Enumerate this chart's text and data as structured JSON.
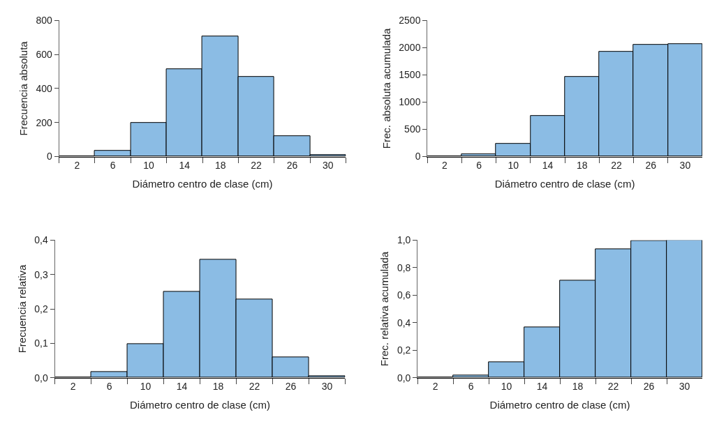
{
  "chart_data": [
    {
      "type": "histogram",
      "xlabel": "Diámetro centro de clase (cm)",
      "ylabel": "Frecuencia absoluta",
      "bins": [
        0,
        4,
        8,
        12,
        16,
        20,
        24,
        28,
        32
      ],
      "values": [
        0,
        35,
        200,
        515,
        705,
        470,
        120,
        8
      ],
      "color": "#8bbce4",
      "xlim": [
        0,
        32
      ],
      "xticks": [
        {
          "value": 0,
          "label": null
        },
        {
          "value": 4,
          "label": null
        },
        {
          "value": 8,
          "label": null
        },
        {
          "value": 12,
          "label": null
        },
        {
          "value": 16,
          "label": null
        },
        {
          "value": 20,
          "label": null
        },
        {
          "value": 24,
          "label": null
        },
        {
          "value": 28,
          "label": null
        },
        {
          "value": 32,
          "label": null
        },
        2,
        6,
        10,
        14,
        18,
        22,
        26,
        30
      ],
      "ylim": [
        0,
        800
      ],
      "yticks": [
        0,
        200,
        400,
        600,
        800
      ]
    },
    {
      "type": "histogram",
      "xlabel": "Diámetro centro de clase (cm)",
      "ylabel": "Frec. absoluta acumulada",
      "bins": [
        0,
        4,
        8,
        12,
        16,
        20,
        24,
        28,
        32
      ],
      "values": [
        0,
        40,
        240,
        750,
        1460,
        1930,
        2050,
        2060
      ],
      "color": "#8bbce4",
      "xlim": [
        0,
        32
      ],
      "xticks": [
        {
          "value": 0,
          "label": null
        },
        {
          "value": 4,
          "label": null
        },
        {
          "value": 8,
          "label": null
        },
        {
          "value": 12,
          "label": null
        },
        {
          "value": 16,
          "label": null
        },
        {
          "value": 20,
          "label": null
        },
        {
          "value": 24,
          "label": null
        },
        {
          "value": 28,
          "label": null
        },
        2,
        6,
        10,
        14,
        18,
        22,
        26,
        30
      ],
      "ylim": [
        0,
        2500
      ],
      "yticks": [
        0,
        500,
        1000,
        1500,
        2000,
        2500
      ]
    },
    {
      "type": "histogram",
      "xlabel": "Diámetro centro de clase (cm)",
      "ylabel": "Frecuencia relativa",
      "bins": [
        0,
        4,
        8,
        12,
        16,
        20,
        24,
        28,
        32
      ],
      "values": [
        0,
        0.017,
        0.098,
        0.25,
        0.343,
        0.228,
        0.059,
        0.004
      ],
      "color": "#8bbce4",
      "xlim": [
        0,
        32
      ],
      "xticks": [
        {
          "value": 0,
          "label": null
        },
        {
          "value": 4,
          "label": null
        },
        {
          "value": 8,
          "label": null
        },
        {
          "value": 12,
          "label": null
        },
        {
          "value": 16,
          "label": null
        },
        {
          "value": 20,
          "label": null
        },
        {
          "value": 24,
          "label": null
        },
        {
          "value": 28,
          "label": null
        },
        {
          "value": 32,
          "label": null
        },
        2,
        6,
        10,
        14,
        18,
        22,
        26,
        30
      ],
      "ylim": [
        0,
        0.4
      ],
      "yticks": [
        {
          "value": 0,
          "label": "0,0"
        },
        {
          "value": 0.1,
          "label": "0,1"
        },
        {
          "value": 0.2,
          "label": "0,2"
        },
        {
          "value": 0.3,
          "label": "0,3"
        },
        {
          "value": 0.4,
          "label": "0,4"
        }
      ]
    },
    {
      "type": "histogram",
      "xlabel": "Diámetro centro de clase (cm)",
      "ylabel": "Frec. relativa acumulada",
      "bins": [
        0,
        4,
        8,
        12,
        16,
        20,
        24,
        28,
        32
      ],
      "values": [
        0,
        0.017,
        0.115,
        0.365,
        0.708,
        0.936,
        0.995,
        1.0
      ],
      "color": "#8bbce4",
      "xlim": [
        0,
        32
      ],
      "xticks": [
        {
          "value": 0,
          "label": null
        },
        {
          "value": 4,
          "label": null
        },
        {
          "value": 8,
          "label": null
        },
        {
          "value": 12,
          "label": null
        },
        {
          "value": 16,
          "label": null
        },
        {
          "value": 20,
          "label": null
        },
        {
          "value": 24,
          "label": null
        },
        {
          "value": 28,
          "label": null
        },
        2,
        6,
        10,
        14,
        18,
        22,
        26,
        30
      ],
      "ylim": [
        0,
        1.0
      ],
      "yticks": [
        {
          "value": 0,
          "label": "0,0"
        },
        {
          "value": 0.2,
          "label": "0,2"
        },
        {
          "value": 0.4,
          "label": "0,4"
        },
        {
          "value": 0.6,
          "label": "0,6"
        },
        {
          "value": 0.8,
          "label": "0,8"
        },
        {
          "value": 1.0,
          "label": "1,0"
        }
      ]
    }
  ]
}
